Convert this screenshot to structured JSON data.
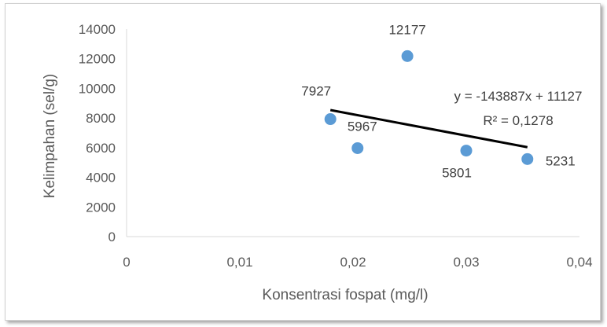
{
  "chart_data": {
    "type": "scatter",
    "title": "",
    "xlabel": "Konsentrasi fospat (mg/l)",
    "ylabel": "Kelimpahan (sel/g)",
    "xlim": [
      0,
      0.04
    ],
    "ylim": [
      0,
      14000
    ],
    "x_ticks": [
      "0",
      "0,01",
      "0,02",
      "0,03",
      "0,04"
    ],
    "y_ticks": [
      "0",
      "2000",
      "4000",
      "6000",
      "8000",
      "10000",
      "12000",
      "14000"
    ],
    "grid": false,
    "legend": "none",
    "series": [
      {
        "points": [
          {
            "x": 0.018,
            "y": 7927,
            "label": "7927"
          },
          {
            "x": 0.0204,
            "y": 5967,
            "label": "5967"
          },
          {
            "x": 0.0248,
            "y": 12177,
            "label": "12177"
          },
          {
            "x": 0.03,
            "y": 5801,
            "label": "5801"
          },
          {
            "x": 0.0354,
            "y": 5231,
            "label": "5231"
          }
        ],
        "color": "#5b9bd5"
      }
    ],
    "trendline": {
      "slope": -143887,
      "intercept": 11127,
      "equation": "y = -143887x + 11127",
      "r_squared": "R² = 0,1278",
      "color": "#000000"
    }
  }
}
